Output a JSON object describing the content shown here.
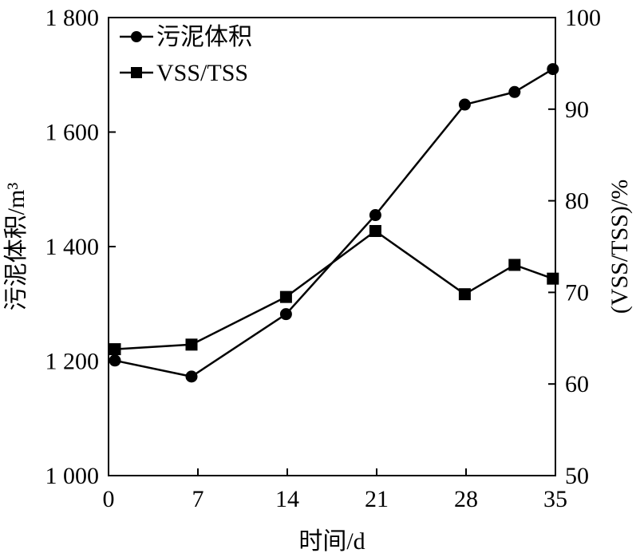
{
  "chart_data": {
    "type": "line",
    "xlabel": "时间/d",
    "ylabel_left": "污泥体积/m³",
    "ylabel_right": "(VSS/TSS)/%",
    "x_ticks": [
      "0",
      "7",
      "14",
      "21",
      "28",
      "35"
    ],
    "x_tick_values": [
      0,
      7,
      14,
      21,
      28,
      35
    ],
    "y_left_ticks": [
      "1 000",
      "1 200",
      "1 400",
      "1 600",
      "1 800"
    ],
    "y_left_tick_values": [
      1000,
      1200,
      1400,
      1600,
      1800
    ],
    "y_right_ticks": [
      "50",
      "60",
      "70",
      "80",
      "90",
      "100"
    ],
    "y_right_tick_values": [
      50,
      60,
      70,
      80,
      90,
      100
    ],
    "xlim": [
      0,
      35
    ],
    "ylim_left": [
      1000,
      1800
    ],
    "ylim_right": [
      50,
      100
    ],
    "legend_position": "top-left",
    "grid": false,
    "series": [
      {
        "name": "污泥体积",
        "axis": "left",
        "marker": "circle",
        "color": "#000000",
        "x": [
          0.5,
          6.5,
          13.9,
          20.9,
          27.9,
          31.8,
          34.8
        ],
        "values": [
          1201,
          1173,
          1282,
          1455,
          1648,
          1670,
          1710
        ]
      },
      {
        "name": "VSS/TSS",
        "axis": "right",
        "marker": "square",
        "color": "#000000",
        "x": [
          0.5,
          6.5,
          13.9,
          20.9,
          27.9,
          31.8,
          34.8
        ],
        "values": [
          63.8,
          64.3,
          69.5,
          76.7,
          69.8,
          73.0,
          71.5
        ]
      }
    ]
  }
}
